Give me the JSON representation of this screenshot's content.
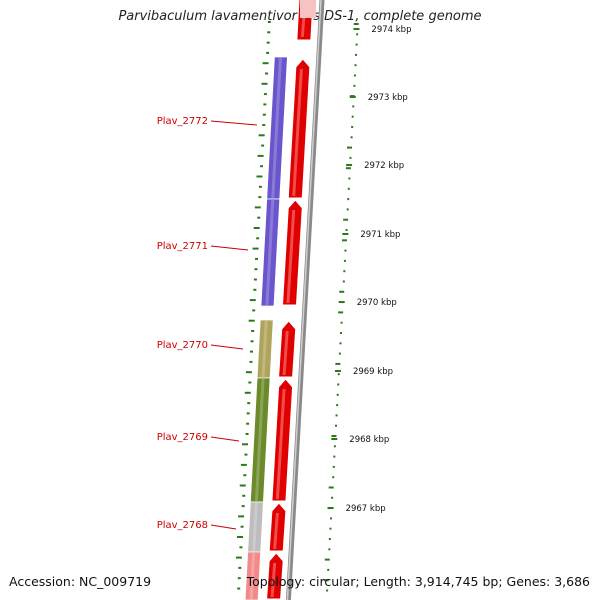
{
  "title": "Parvibaculum lavamentivorans DS-1, complete genome",
  "footer": {
    "accession": "Accession: NC_009719",
    "summary": "Topology: circular; Length: 3,914,745 bp; Genes: 3,686"
  },
  "scale_labels": [
    "2974 kbp",
    "2973 kbp",
    "2972 kbp",
    "2971 kbp",
    "2970 kbp",
    "2969 kbp",
    "2968 kbp",
    "2967 kbp"
  ],
  "genes": [
    {
      "name": "Plav_2772",
      "color": "#6a55cc"
    },
    {
      "name": "Plav_2771",
      "color": "#6a55cc"
    },
    {
      "name": "Plav_2770",
      "color": "#b0a35c"
    },
    {
      "name": "Plav_2769",
      "color": "#6b8a2a"
    },
    {
      "name": "Plav_2768",
      "color": "#bdbdbd"
    }
  ],
  "colors": {
    "cds_arrow": "#e00000",
    "backbone": "#8a8a8a",
    "gc_ticks": "#2a7a1a",
    "label_text": "#cc0000"
  }
}
